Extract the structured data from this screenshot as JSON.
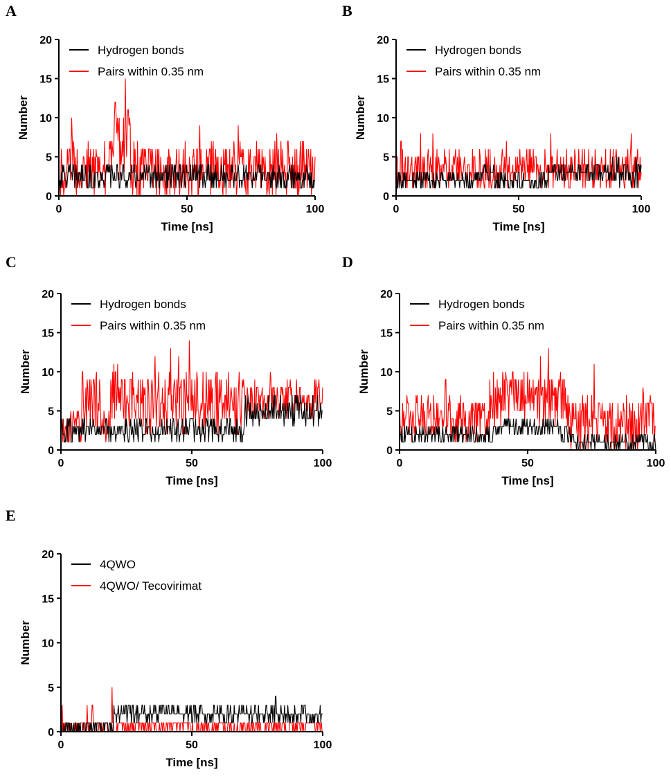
{
  "figure": {
    "colors": {
      "series1": "#000000",
      "series2": "#ff0000",
      "axis": "#000000"
    }
  },
  "chart_data": [
    {
      "panel": "A",
      "type": "line",
      "title": "",
      "xlabel": "Time [ns]",
      "ylabel": "Number",
      "xlim": [
        0,
        100
      ],
      "ylim": [
        0,
        20
      ],
      "xticks": [
        "0",
        "50",
        "100"
      ],
      "yticks": [
        "0",
        "5",
        "10",
        "15",
        "20"
      ],
      "legend_position": "top-left",
      "series": [
        {
          "name": "Hydrogen bonds",
          "color": "#000000",
          "base_low": 1,
          "base_high": 4,
          "typical": 2.5,
          "phases": [
            [
              0,
              100,
              1,
              4
            ]
          ]
        },
        {
          "name": "Pairs within 0.35 nm",
          "color": "#ff0000",
          "base_low": 0,
          "base_high": 7,
          "typical": 3,
          "phases": [
            [
              0,
              20,
              0,
              7
            ],
            [
              20,
              28,
              2,
              11
            ],
            [
              28,
              100,
              0,
              7
            ]
          ],
          "spikes": [
            [
              5,
              10
            ],
            [
              22,
              12
            ],
            [
              26,
              15
            ],
            [
              27,
              11
            ],
            [
              55,
              9
            ],
            [
              70,
              9
            ],
            [
              85,
              8
            ]
          ]
        }
      ]
    },
    {
      "panel": "B",
      "type": "line",
      "title": "",
      "xlabel": "Time [ns]",
      "ylabel": "Number",
      "xlim": [
        0,
        100
      ],
      "ylim": [
        0,
        20
      ],
      "xticks": [
        "0",
        "50",
        "100"
      ],
      "yticks": [
        "0",
        "5",
        "10",
        "15",
        "20"
      ],
      "legend_position": "top-left",
      "series": [
        {
          "name": "Hydrogen bonds",
          "color": "#000000",
          "phases": [
            [
              0,
              32,
              1,
              3
            ],
            [
              32,
              40,
              2,
              4
            ],
            [
              40,
              62,
              1,
              3
            ],
            [
              62,
              88,
              2,
              4
            ],
            [
              88,
              100,
              1,
              5
            ]
          ]
        },
        {
          "name": "Pairs within 0.35 nm",
          "color": "#ff0000",
          "phases": [
            [
              0,
              100,
              1,
              6
            ]
          ],
          "spikes": [
            [
              2,
              7
            ],
            [
              10,
              8
            ],
            [
              15,
              8
            ],
            [
              45,
              7
            ],
            [
              63,
              8
            ],
            [
              96,
              8
            ]
          ]
        }
      ]
    },
    {
      "panel": "C",
      "type": "line",
      "title": "",
      "xlabel": "Time [ns]",
      "ylabel": "Number",
      "xlim": [
        0,
        100
      ],
      "ylim": [
        0,
        20
      ],
      "xticks": [
        "0",
        "50",
        "100"
      ],
      "yticks": [
        "0",
        "5",
        "10",
        "15",
        "20"
      ],
      "legend_position": "top-left",
      "series": [
        {
          "name": "Hydrogen bonds",
          "color": "#000000",
          "phases": [
            [
              0,
              70,
              1,
              4
            ],
            [
              70,
              100,
              3,
              7
            ]
          ]
        },
        {
          "name": "Pairs within 0.35 nm",
          "color": "#ff0000",
          "phases": [
            [
              0,
              8,
              1,
              5
            ],
            [
              8,
              15,
              3,
              11
            ],
            [
              15,
              19,
              1,
              5
            ],
            [
              19,
              30,
              3,
              11
            ],
            [
              30,
              70,
              2,
              10
            ],
            [
              70,
              100,
              4,
              9
            ]
          ],
          "spikes": [
            [
              36,
              12
            ],
            [
              42,
              13
            ],
            [
              45,
              12
            ],
            [
              49,
              14
            ],
            [
              80,
              10
            ],
            [
              90,
              9
            ]
          ]
        }
      ]
    },
    {
      "panel": "D",
      "type": "line",
      "title": "",
      "xlabel": "Time [ns]",
      "ylabel": "Number",
      "xlim": [
        0,
        100
      ],
      "ylim": [
        0,
        20
      ],
      "xticks": [
        "0",
        "50",
        "100"
      ],
      "yticks": [
        "0",
        "5",
        "10",
        "15",
        "20"
      ],
      "legend_position": "top-left",
      "series": [
        {
          "name": "Hydrogen bonds",
          "color": "#000000",
          "phases": [
            [
              0,
              38,
              1,
              3
            ],
            [
              38,
              62,
              2,
              4
            ],
            [
              62,
              68,
              1,
              3
            ],
            [
              68,
              100,
              0,
              2
            ]
          ]
        },
        {
          "name": "Pairs within 0.35 nm",
          "color": "#ff0000",
          "phases": [
            [
              0,
              35,
              1,
              7
            ],
            [
              35,
              65,
              3,
              10
            ],
            [
              65,
              100,
              0,
              7
            ]
          ],
          "spikes": [
            [
              18,
              9
            ],
            [
              55,
              12
            ],
            [
              58,
              13
            ],
            [
              76,
              11
            ],
            [
              95,
              8
            ]
          ]
        }
      ]
    },
    {
      "panel": "E",
      "type": "line",
      "title": "",
      "xlabel": "Time [ns]",
      "ylabel": "Number",
      "xlim": [
        0,
        100
      ],
      "ylim": [
        0,
        20
      ],
      "xticks": [
        "0",
        "50",
        "100"
      ],
      "yticks": [
        "0",
        "5",
        "10",
        "15",
        "20"
      ],
      "legend_position": "top-left",
      "series": [
        {
          "name": "4QWO",
          "color": "#000000",
          "phases": [
            [
              0,
              20,
              0,
              1
            ],
            [
              20,
              100,
              1,
              3
            ]
          ],
          "spikes": [
            [
              82,
              4
            ]
          ]
        },
        {
          "name": "4QWO/ Tecovirimat",
          "color": "#ff0000",
          "phases": [
            [
              0,
              20,
              0,
              1
            ],
            [
              20,
              100,
              0,
              1
            ]
          ],
          "spikes": [
            [
              0.5,
              3
            ],
            [
              10,
              3
            ],
            [
              12,
              3
            ],
            [
              19.5,
              5
            ]
          ]
        }
      ]
    }
  ]
}
